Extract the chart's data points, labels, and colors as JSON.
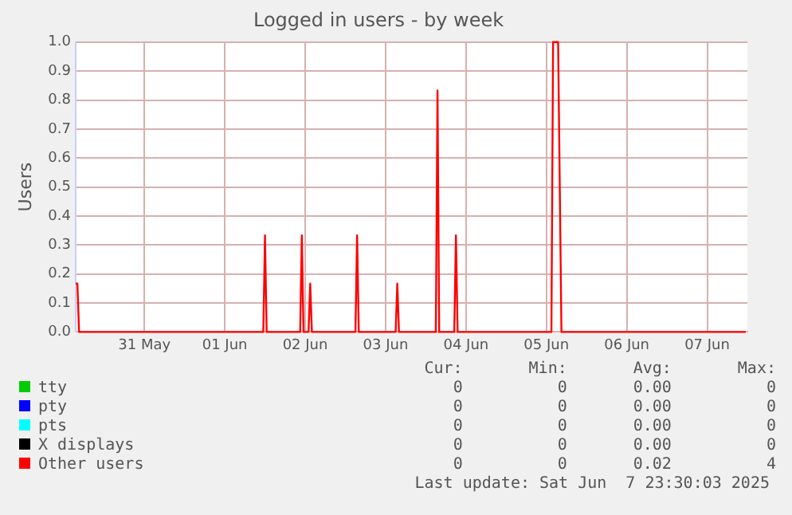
{
  "chart_data": {
    "type": "line",
    "title": "Logged in users - by week",
    "ylabel": "Users",
    "xlim": [
      "2025-05-30T15:30",
      "2025-06-08T00:00"
    ],
    "xticks": [
      {
        "value": "2025-05-31T12:00",
        "label": "31 May"
      },
      {
        "value": "2025-06-01T12:00",
        "label": "01 Jun"
      },
      {
        "value": "2025-06-02T12:00",
        "label": "02 Jun"
      },
      {
        "value": "2025-06-03T12:00",
        "label": "03 Jun"
      },
      {
        "value": "2025-06-04T12:00",
        "label": "04 Jun"
      },
      {
        "value": "2025-06-05T12:00",
        "label": "05 Jun"
      },
      {
        "value": "2025-06-06T12:00",
        "label": "06 Jun"
      },
      {
        "value": "2025-06-07T12:00",
        "label": "07 Jun"
      }
    ],
    "ylim": [
      0,
      1
    ],
    "yticks": [
      {
        "value": 0,
        "label": "0.0"
      },
      {
        "value": 0.1,
        "label": "0.1"
      },
      {
        "value": 0.2,
        "label": "0.2"
      },
      {
        "value": 0.3,
        "label": "0.3"
      },
      {
        "value": 0.4,
        "label": "0.4"
      },
      {
        "value": 0.5,
        "label": "0.5"
      },
      {
        "value": 0.6,
        "label": "0.6"
      },
      {
        "value": 0.7,
        "label": "0.7"
      },
      {
        "value": 0.8,
        "label": "0.8"
      },
      {
        "value": 0.9,
        "label": "0.9"
      },
      {
        "value": 1,
        "label": "1.0"
      }
    ],
    "grid": true,
    "legend": "bottom",
    "marker": "none",
    "line_style": "solid",
    "series": [
      {
        "name": "tty",
        "color": "#00cc00"
      },
      {
        "name": "pty",
        "color": "#0000ff"
      },
      {
        "name": "pts",
        "color": "#00ffff"
      },
      {
        "name": "X displays",
        "color": "#000000"
      },
      {
        "name": "Other users",
        "color": "#ff0000",
        "x": [
          "2025-05-30T15:30",
          "2025-05-30T16:00",
          "2025-05-30T16:30",
          "2025-06-01T23:30",
          "2025-06-02T00:00",
          "2025-06-02T00:30",
          "2025-06-02T10:30",
          "2025-06-02T11:00",
          "2025-06-02T11:30",
          "2025-06-02T13:00",
          "2025-06-02T13:30",
          "2025-06-02T14:00",
          "2025-06-03T03:00",
          "2025-06-03T03:30",
          "2025-06-03T04:00",
          "2025-06-03T15:00",
          "2025-06-03T15:30",
          "2025-06-03T16:00",
          "2025-06-04T03:00",
          "2025-06-04T03:30",
          "2025-06-04T04:00",
          "2025-06-04T08:30",
          "2025-06-04T09:00",
          "2025-06-04T09:30",
          "2025-06-05T13:30",
          "2025-06-05T14:00",
          "2025-06-05T15:30",
          "2025-06-05T16:30",
          "2025-06-07T23:30"
        ],
        "values": [
          0.167,
          0.167,
          0,
          0,
          0.333,
          0,
          0,
          0.333,
          0,
          0,
          0.167,
          0,
          0,
          0.333,
          0,
          0,
          0.167,
          0,
          0,
          0.833,
          0,
          0,
          0.333,
          0,
          0,
          1,
          1,
          0,
          0
        ]
      }
    ],
    "annotations": [
      "Cur:",
      "Min:",
      "Avg:",
      "Max:",
      "0",
      "0",
      "0.00",
      "0",
      "0",
      "0",
      "0.00",
      "0",
      "0",
      "0",
      "0.00",
      "0",
      "0",
      "0",
      "0.00",
      "0",
      "0",
      "0",
      "0.02",
      "4",
      "Last update: Sat Jun  7 23:30:03 2025"
    ]
  }
}
